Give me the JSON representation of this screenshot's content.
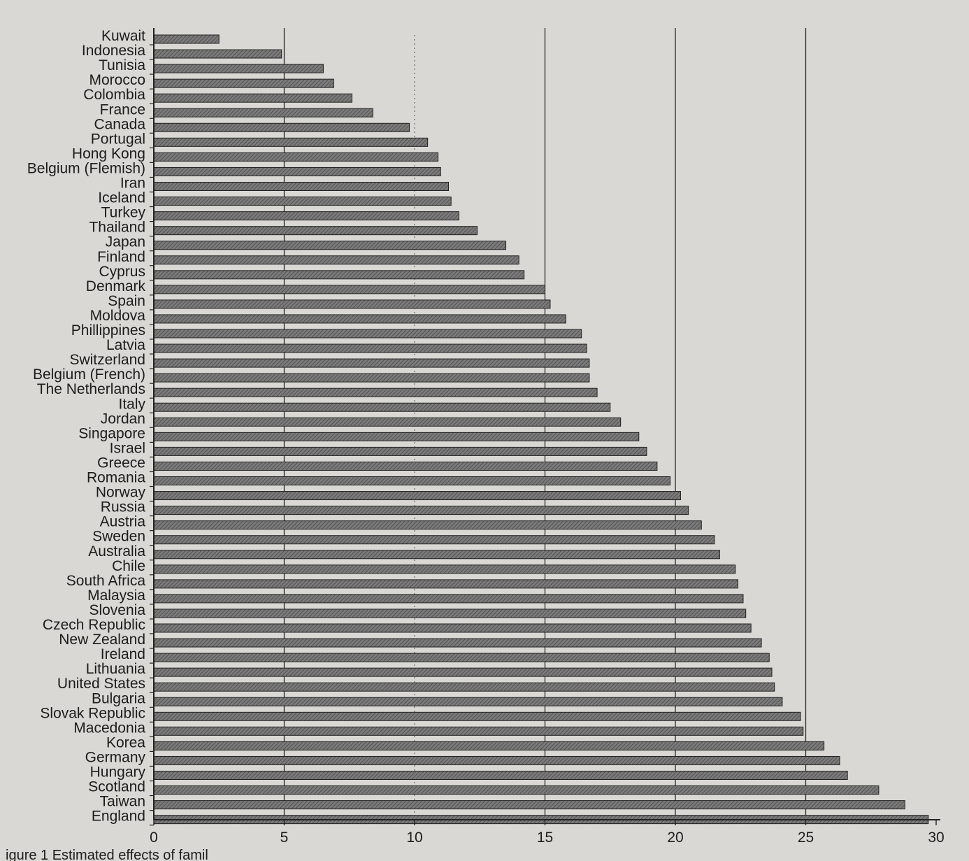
{
  "chart_data": {
    "type": "bar",
    "orientation": "horizontal",
    "categories": [
      "Kuwait",
      "Indonesia",
      "Tunisia",
      "Morocco",
      "Colombia",
      "France",
      "Canada",
      "Portugal",
      "Hong Kong",
      "Belgium (Flemish)",
      "Iran",
      "Iceland",
      "Turkey",
      "Thailand",
      "Japan",
      "Finland",
      "Cyprus",
      "Denmark",
      "Spain",
      "Moldova",
      "Phillippines",
      "Latvia",
      "Switzerland",
      "Belgium (French)",
      "The Netherlands",
      "Italy",
      "Jordan",
      "Singapore",
      "Israel",
      "Greece",
      "Romania",
      "Norway",
      "Russia",
      "Austria",
      "Sweden",
      "Australia",
      "Chile",
      "South Africa",
      "Malaysia",
      "Slovenia",
      "Czech Republic",
      "New Zealand",
      "Ireland",
      "Lithuania",
      "United States",
      "Bulgaria",
      "Slovak Republic",
      "Macedonia",
      "Korea",
      "Germany",
      "Hungary",
      "Scotland",
      "Taiwan",
      "England"
    ],
    "values": [
      2.5,
      4.9,
      6.5,
      6.9,
      7.6,
      8.4,
      9.8,
      10.5,
      10.9,
      11.0,
      11.3,
      11.4,
      11.7,
      12.4,
      13.5,
      14.0,
      14.2,
      15.0,
      15.2,
      15.8,
      16.4,
      16.6,
      16.7,
      16.7,
      17.0,
      17.5,
      17.9,
      18.6,
      18.9,
      19.3,
      19.8,
      20.2,
      20.5,
      21.0,
      21.5,
      21.7,
      22.3,
      22.4,
      22.6,
      22.7,
      22.9,
      23.3,
      23.6,
      23.7,
      23.8,
      24.1,
      24.8,
      24.9,
      25.7,
      26.3,
      26.6,
      27.8,
      28.8,
      29.7
    ],
    "xticks": [
      0,
      5,
      10,
      15,
      20,
      25,
      30
    ],
    "xlim": [
      0,
      30
    ],
    "grid": "vertical lines at 5, 15, 20, 25",
    "caption": "igure 1  Estimated effects of famil"
  },
  "colors": {
    "background": "#d9d8d4",
    "bar_fill": "#6f6f6f",
    "bar_outline": "#222222",
    "axis": "#222222",
    "text": "#1c1c1c"
  }
}
